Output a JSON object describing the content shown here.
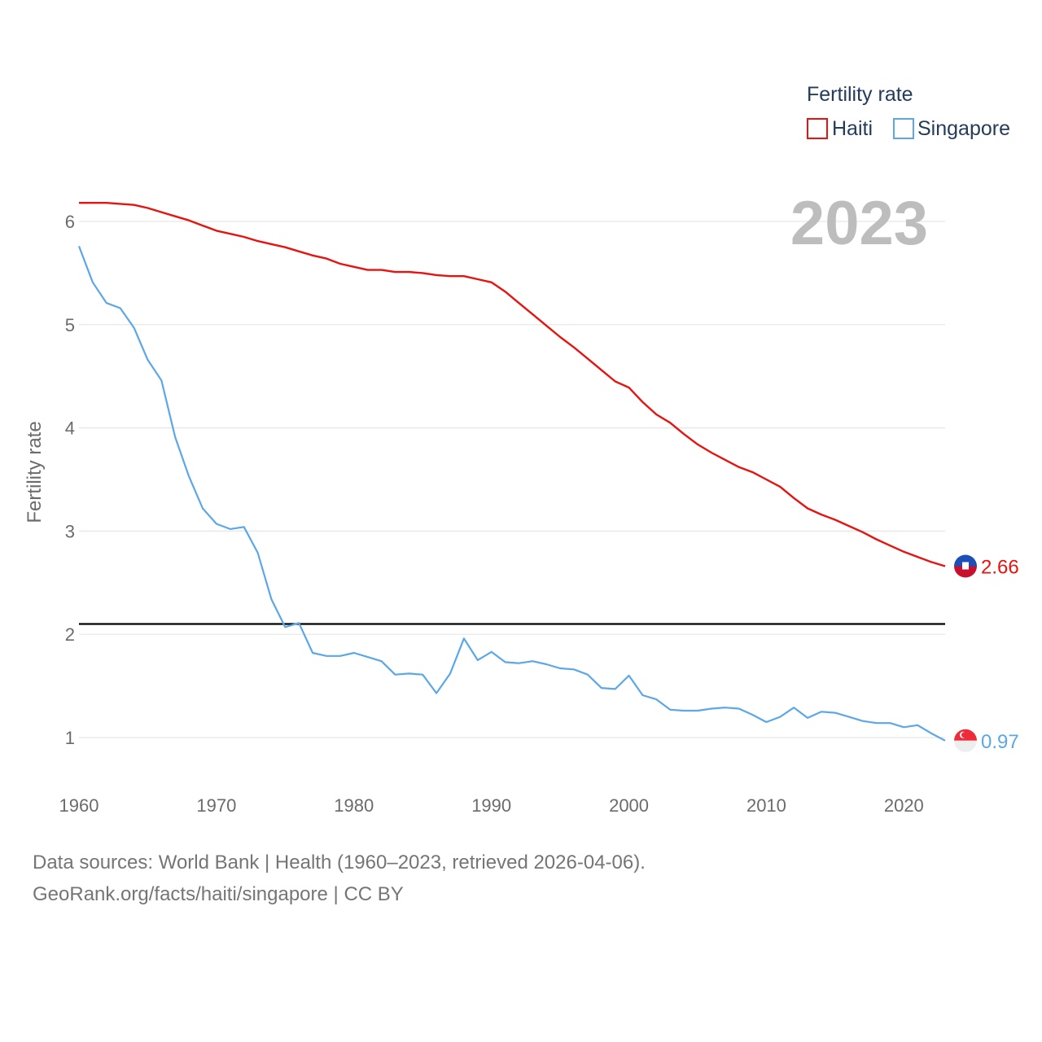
{
  "chart_data": {
    "type": "line",
    "title": "",
    "xlabel": "",
    "ylabel": "Fertility rate",
    "xlim": [
      1960,
      2023
    ],
    "ylim": [
      1,
      6
    ],
    "xticks": [
      "1960",
      "1970",
      "1980",
      "1990",
      "2000",
      "2010",
      "2020"
    ],
    "yticks": [
      "1",
      "2",
      "3",
      "4",
      "5",
      "6"
    ],
    "x": [
      1960,
      1961,
      1962,
      1963,
      1964,
      1965,
      1966,
      1967,
      1968,
      1969,
      1970,
      1971,
      1972,
      1973,
      1974,
      1975,
      1976,
      1977,
      1978,
      1979,
      1980,
      1981,
      1982,
      1983,
      1984,
      1985,
      1986,
      1987,
      1988,
      1989,
      1990,
      1991,
      1992,
      1993,
      1994,
      1995,
      1996,
      1997,
      1998,
      1999,
      2000,
      2001,
      2002,
      2003,
      2004,
      2005,
      2006,
      2007,
      2008,
      2009,
      2010,
      2011,
      2012,
      2013,
      2014,
      2015,
      2016,
      2017,
      2018,
      2019,
      2020,
      2021,
      2022,
      2023
    ],
    "series": [
      {
        "name": "Haiti",
        "color": "#e8130f",
        "values": [
          6.18,
          6.18,
          6.18,
          6.17,
          6.16,
          6.13,
          6.09,
          6.05,
          6.01,
          5.96,
          5.91,
          5.88,
          5.85,
          5.81,
          5.78,
          5.75,
          5.71,
          5.67,
          5.64,
          5.59,
          5.56,
          5.53,
          5.53,
          5.51,
          5.51,
          5.5,
          5.48,
          5.47,
          5.47,
          5.44,
          5.41,
          5.32,
          5.21,
          5.1,
          4.99,
          4.88,
          4.78,
          4.67,
          4.56,
          4.45,
          4.39,
          4.25,
          4.13,
          4.05,
          3.94,
          3.84,
          3.76,
          3.69,
          3.62,
          3.57,
          3.5,
          3.43,
          3.32,
          3.22,
          3.16,
          3.11,
          3.05,
          2.99,
          2.92,
          2.86,
          2.8,
          2.75,
          2.7,
          2.66
        ],
        "end_label": "2.66"
      },
      {
        "name": "Singapore",
        "color": "#5ba7e8",
        "values": [
          5.76,
          5.41,
          5.21,
          5.16,
          4.97,
          4.66,
          4.46,
          3.91,
          3.53,
          3.22,
          3.07,
          3.02,
          3.04,
          2.79,
          2.34,
          2.07,
          2.11,
          1.82,
          1.79,
          1.79,
          1.82,
          1.78,
          1.74,
          1.61,
          1.62,
          1.61,
          1.43,
          1.62,
          1.96,
          1.75,
          1.83,
          1.73,
          1.72,
          1.74,
          1.71,
          1.67,
          1.66,
          1.61,
          1.48,
          1.47,
          1.6,
          1.41,
          1.37,
          1.27,
          1.26,
          1.26,
          1.28,
          1.29,
          1.28,
          1.22,
          1.15,
          1.2,
          1.29,
          1.19,
          1.25,
          1.24,
          1.2,
          1.16,
          1.14,
          1.14,
          1.1,
          1.12,
          1.04,
          0.97
        ],
        "end_label": "0.97"
      }
    ],
    "reference_line": 2.1,
    "year_label": "2023",
    "legend": {
      "title": "Fertility rate",
      "placement": "top-right"
    }
  },
  "legend": {
    "title": "Fertility rate",
    "items": [
      "Haiti",
      "Singapore"
    ]
  },
  "footer": {
    "line1": "Data sources: World Bank | Health (1960–2023, retrieved 2026-04-06).",
    "line2": "GeoRank.org/facts/haiti/singapore | CC BY"
  },
  "colors": {
    "haiti": "#e8130f",
    "singapore": "#5ba7e8",
    "reference": "#000000",
    "grid": "#e6e6e6"
  },
  "icons": {
    "haiti_flag": "haiti-flag-icon",
    "singapore_flag": "singapore-flag-icon"
  }
}
